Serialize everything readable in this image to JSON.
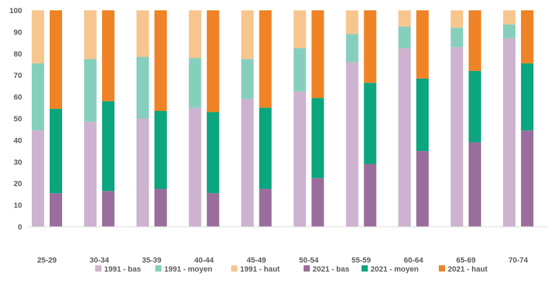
{
  "chart_data": {
    "type": "bar",
    "stacked": true,
    "categories": [
      "25-29",
      "30-34",
      "35-39",
      "40-44",
      "45-49",
      "50-54",
      "55-59",
      "60-64",
      "65-69",
      "70-74"
    ],
    "ylim": [
      0,
      100
    ],
    "yticks": [
      "0",
      "10",
      "20",
      "30",
      "40",
      "50",
      "60",
      "70",
      "80",
      "90",
      "100"
    ],
    "grid": false,
    "legend_position": "bottom",
    "groups": [
      {
        "year": "1991",
        "series": [
          {
            "name": "1991 - bas",
            "color": "#cdb3cf",
            "values": [
              44.5,
              48.5,
              50,
              55,
              59,
              62.5,
              76,
              82.5,
              83,
              87
            ]
          },
          {
            "name": "1991 - moyen",
            "color": "#87cfbd",
            "values": [
              31,
              29,
              28.5,
              23,
              18.5,
              20,
              13,
              10,
              9,
              6.5
            ]
          },
          {
            "name": "1991 - haut",
            "color": "#f7c68e",
            "values": [
              24.5,
              22.5,
              21.5,
              22,
              22.5,
              17.5,
              11,
              7.5,
              8,
              6.5
            ]
          }
        ]
      },
      {
        "year": "2021",
        "series": [
          {
            "name": "2021 - bas",
            "color": "#9a6e9c",
            "values": [
              15.5,
              16.5,
              17.5,
              15.5,
              17.5,
              22.5,
              29,
              35,
              39,
              44.5
            ]
          },
          {
            "name": "2021 - moyen",
            "color": "#0ba57e",
            "values": [
              39,
              41.5,
              36,
              37.5,
              37.5,
              37,
              37.5,
              33.5,
              33,
              31
            ]
          },
          {
            "name": "2021 - haut",
            "color": "#ef8325",
            "values": [
              45.5,
              42,
              46.5,
              47,
              45,
              40.5,
              33.5,
              31.5,
              28,
              24.5
            ]
          }
        ]
      }
    ]
  }
}
